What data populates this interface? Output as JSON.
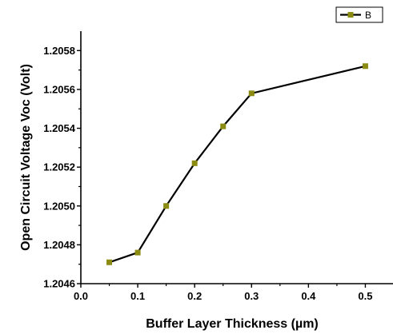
{
  "chart_data": {
    "type": "line",
    "xlabel": "Buffer Layer  Thickness (µm)",
    "ylabel": "Open Circuit Voltage Voc (Volt)",
    "xlim": [
      0.0,
      0.55
    ],
    "ylim": [
      1.2046,
      1.2059
    ],
    "xticks": [
      "0.0",
      "0.1",
      "0.2",
      "0.3",
      "0.4",
      "0.5"
    ],
    "yticks": [
      "1.2046",
      "1.2048",
      "1.2050",
      "1.2052",
      "1.2054",
      "1.2056",
      "1.2058"
    ],
    "series": [
      {
        "name": "B",
        "x": [
          0.05,
          0.1,
          0.15,
          0.2,
          0.25,
          0.3,
          0.5
        ],
        "y": [
          1.20471,
          1.20476,
          1.205,
          1.20522,
          1.20541,
          1.20558,
          1.20572
        ]
      }
    ],
    "legend_position": "top-right",
    "grid": false,
    "colors": {
      "line": "#000000",
      "marker": "#8b8b12"
    }
  }
}
